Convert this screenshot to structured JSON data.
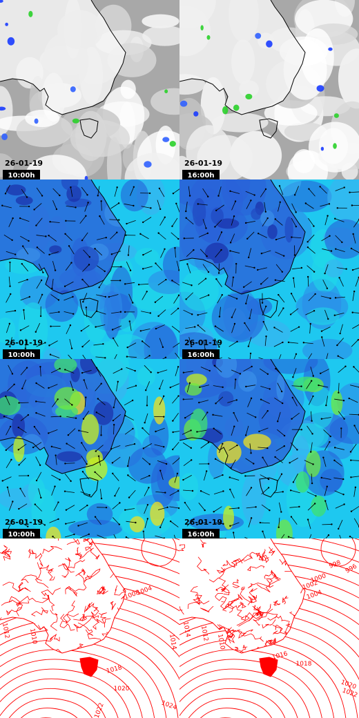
{
  "rows": [
    {
      "panels": [
        {
          "date": "26-01-19",
          "time": "10:00h"
        },
        {
          "date": "26-01-19",
          "time": "16:00h"
        }
      ]
    },
    {
      "panels": [
        {
          "date": "26-01-19",
          "time": "10:00h"
        },
        {
          "date": "26-01-19",
          "time": "16:00h"
        }
      ]
    },
    {
      "panels": [
        {
          "date": "26-01-19",
          "time": "10:00h"
        },
        {
          "date": "26-01-19",
          "time": "16:00h"
        }
      ]
    },
    {
      "panels": [
        {
          "isobars": [
            "1004",
            "1008",
            "1012",
            "1010",
            "1018",
            "1020",
            "1014",
            "1022",
            "1024"
          ]
        },
        {
          "isobars": [
            "998",
            "996",
            "1000",
            "1002",
            "1004",
            "1014",
            "1012",
            "1010",
            "1016",
            "1018",
            "1020",
            "1022"
          ]
        }
      ]
    }
  ]
}
